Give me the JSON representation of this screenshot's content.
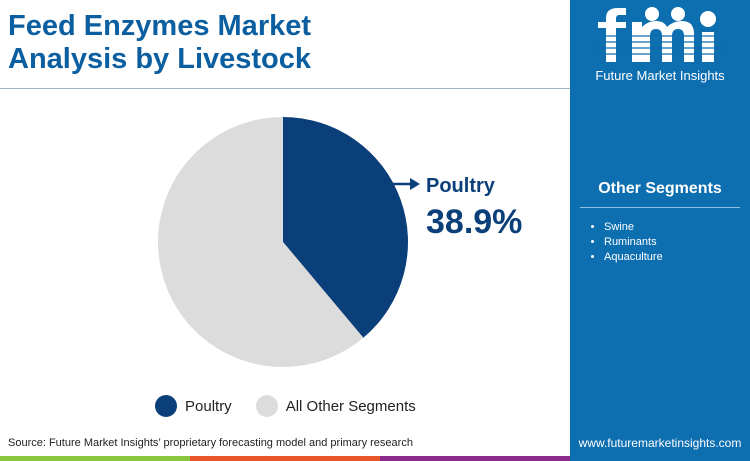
{
  "title_line1": "Feed Enzymes Market",
  "title_line2": "Analysis by Livestock",
  "brand": "Future Market Insights",
  "other_segments_title": "Other Segments",
  "other_segments": [
    "Swine",
    "Ruminants",
    "Aquaculture"
  ],
  "website": "www.futuremarketinsights.com",
  "source": "Source: Future Market Insights’ proprietary forecasting model and primary research",
  "callout": {
    "label": "Poultry",
    "value": "38.9%"
  },
  "chart_data": {
    "type": "pie",
    "categories": [
      "Poultry",
      "All Other Segments"
    ],
    "values": [
      38.9,
      61.1
    ],
    "colors": [
      "#0b3f7a",
      "#dcdcdc"
    ],
    "legend": [
      "Poultry",
      "All Other Segments"
    ],
    "legend_placement": "bottom"
  }
}
